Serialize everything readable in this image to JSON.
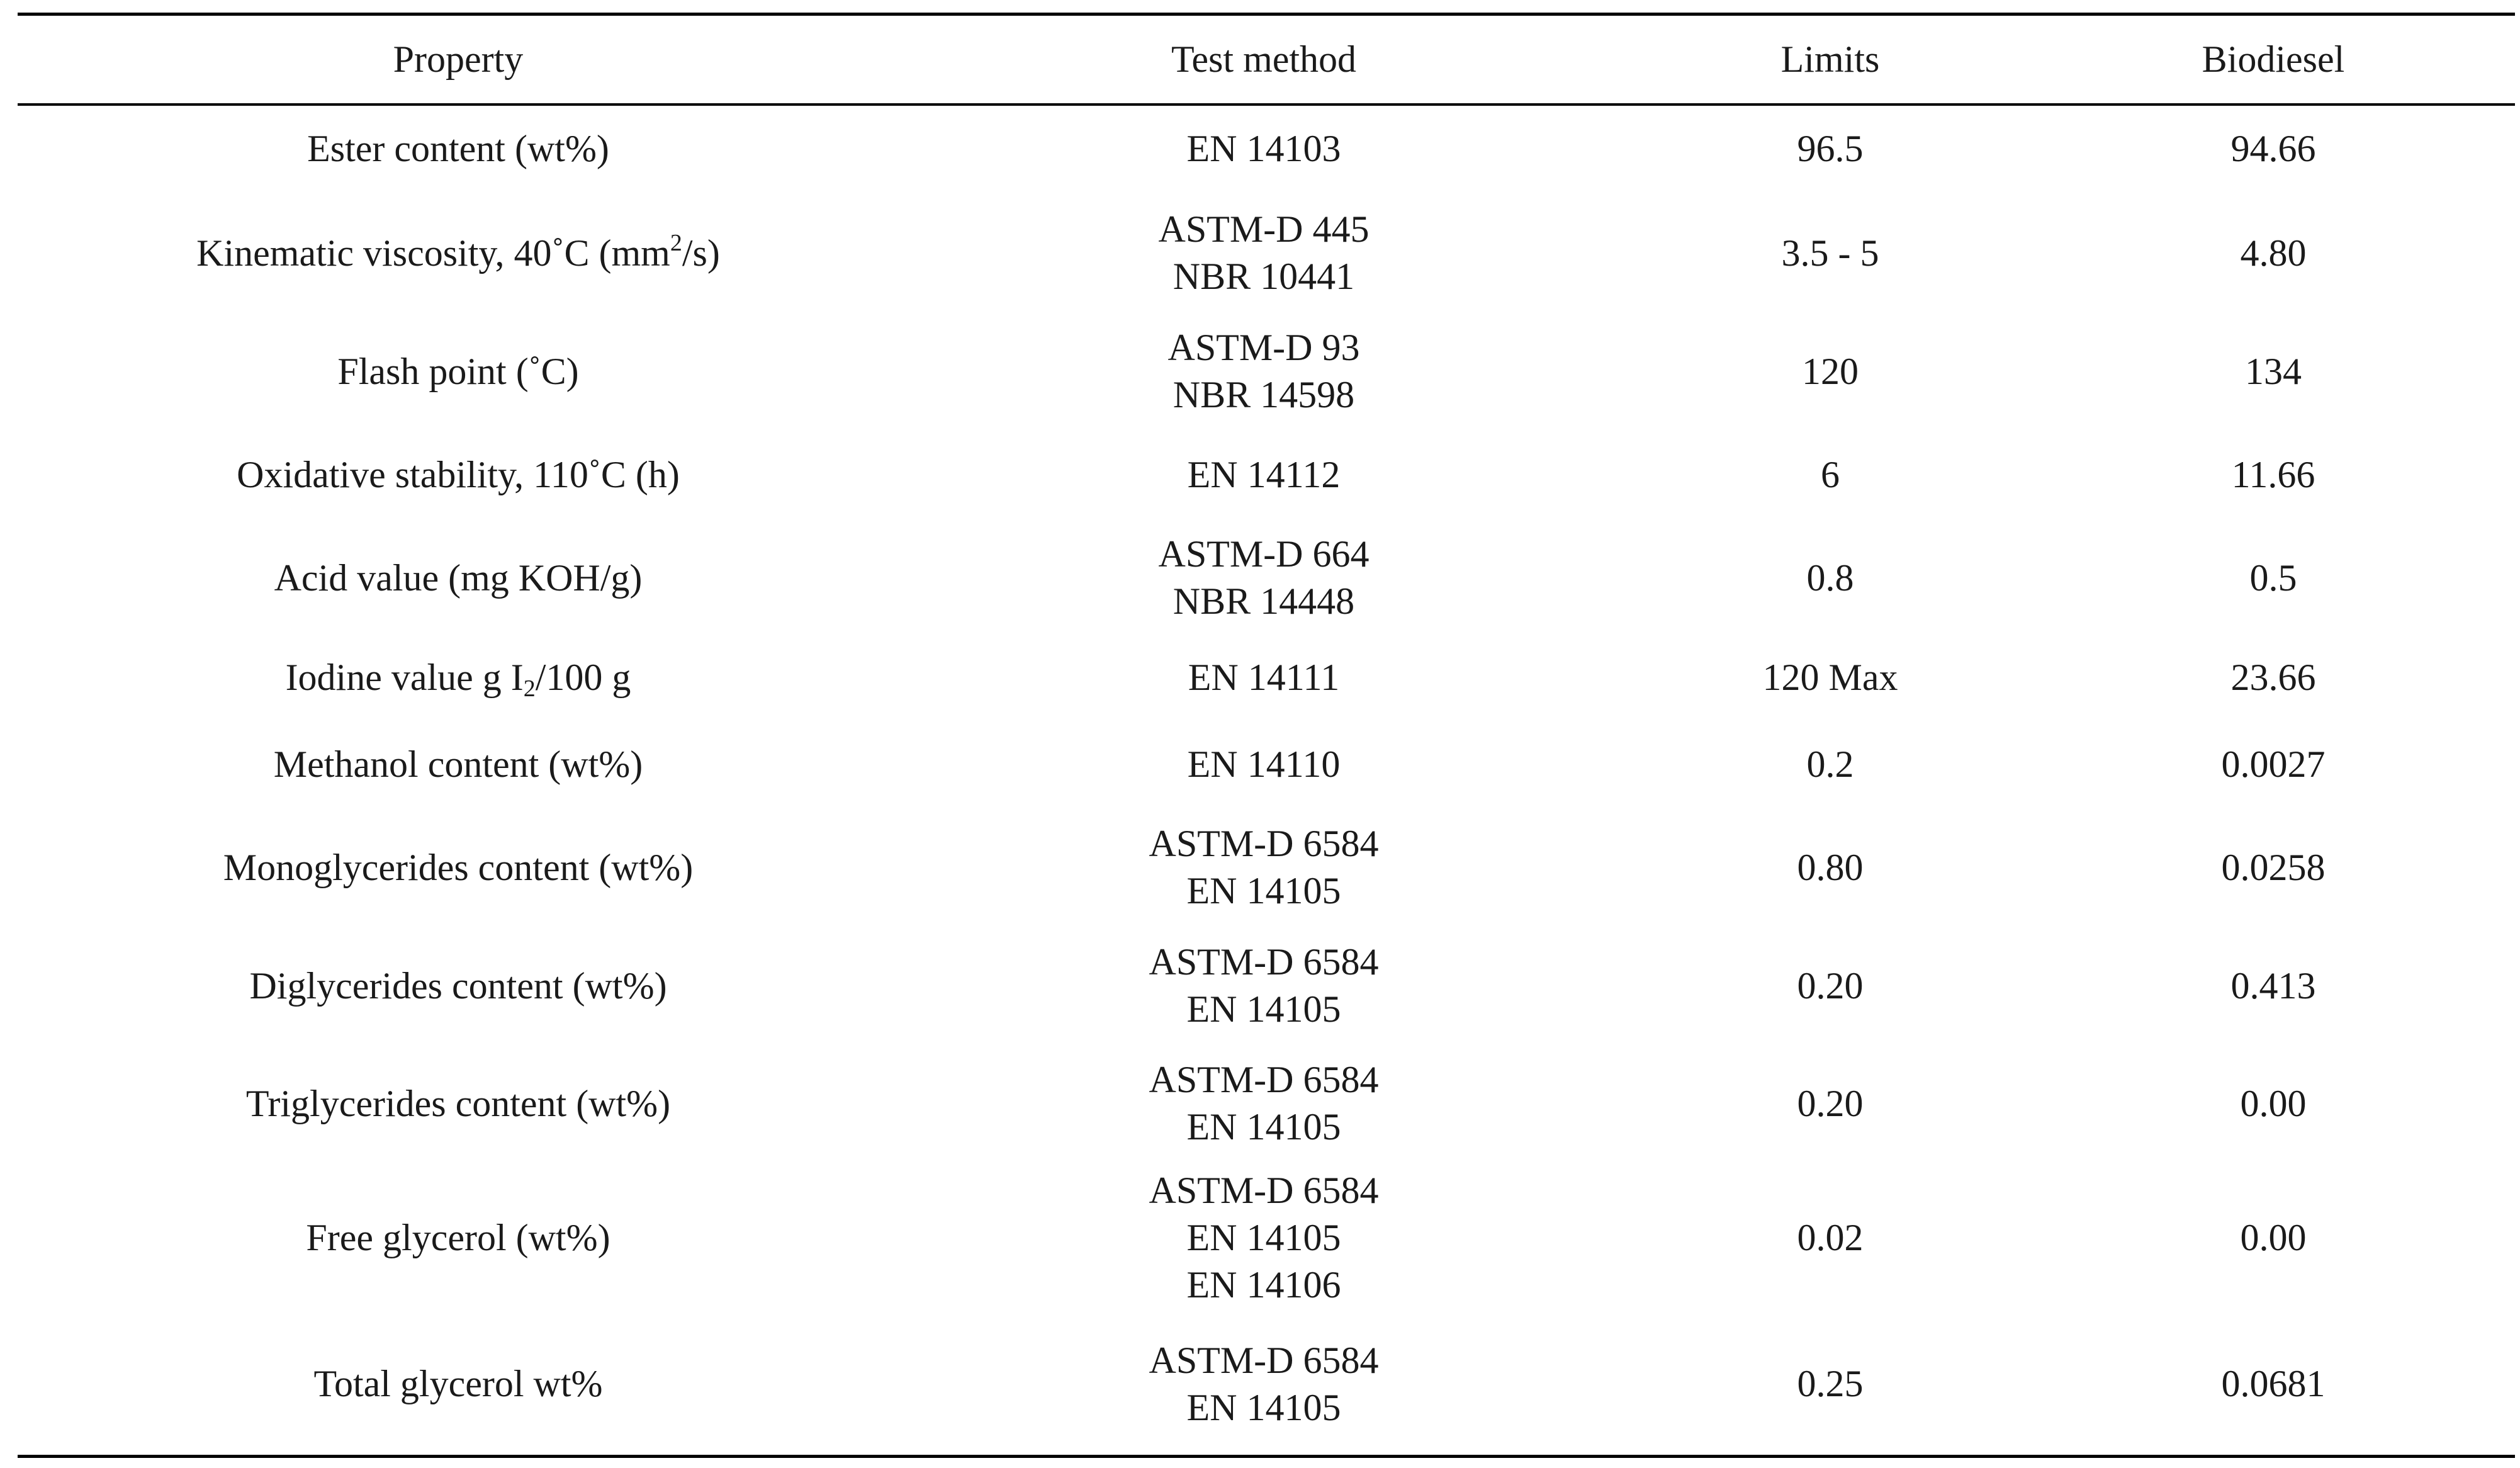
{
  "table": {
    "headers": [
      "Property",
      "Test method",
      "Limits",
      "Biodiesel"
    ],
    "rows": [
      {
        "property": "Ester content (wt%)",
        "methods": [
          "EN 14103"
        ],
        "limits": "96.5",
        "biodiesel": "94.66"
      },
      {
        "property_pre": "Kinematic viscosity, 40˚C (mm",
        "property_sup": "2",
        "property_post": "/s)",
        "methods": [
          "ASTM-D 445",
          "NBR 10441"
        ],
        "limits": "3.5 - 5",
        "biodiesel": "4.80"
      },
      {
        "property": "Flash point (˚C)",
        "methods": [
          "ASTM-D 93",
          "NBR 14598"
        ],
        "limits": "120",
        "biodiesel": "134"
      },
      {
        "property": "Oxidative stability, 110˚C (h)",
        "methods": [
          "EN 14112"
        ],
        "limits": "6",
        "biodiesel": "11.66"
      },
      {
        "property": "Acid value (mg KOH/g)",
        "methods": [
          "ASTM-D 664",
          "NBR 14448"
        ],
        "limits": "0.8",
        "biodiesel": "0.5"
      },
      {
        "property_pre": "Iodine value g I",
        "property_sub": "2",
        "property_post": "/100 g",
        "methods": [
          "EN 14111"
        ],
        "limits": "120 Max",
        "biodiesel": "23.66"
      },
      {
        "property": "Methanol content (wt%)",
        "methods": [
          "EN 14110"
        ],
        "limits": "0.2",
        "biodiesel": "0.0027"
      },
      {
        "property": "Monoglycerides content (wt%)",
        "methods": [
          "ASTM-D 6584",
          "EN 14105"
        ],
        "limits": "0.80",
        "biodiesel": "0.0258"
      },
      {
        "property": "Diglycerides content (wt%)",
        "methods": [
          "ASTM-D 6584",
          "EN 14105"
        ],
        "limits": "0.20",
        "biodiesel": "0.413"
      },
      {
        "property": "Triglycerides content (wt%)",
        "methods": [
          "ASTM-D 6584",
          "EN 14105"
        ],
        "limits": "0.20",
        "biodiesel": "0.00"
      },
      {
        "property": "Free glycerol (wt%)",
        "methods": [
          "ASTM-D 6584",
          "EN 14105",
          "EN 14106"
        ],
        "limits": "0.02",
        "biodiesel": "0.00"
      },
      {
        "property": "Total glycerol wt%",
        "methods": [
          "ASTM-D 6584",
          "EN 14105"
        ],
        "limits": "0.25",
        "biodiesel": "0.0681"
      }
    ]
  }
}
